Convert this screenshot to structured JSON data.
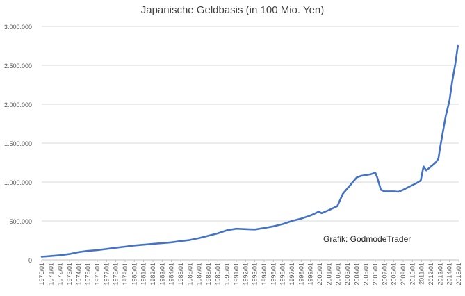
{
  "chart_data": {
    "type": "line",
    "title": "Japanische Geldbasis (in 100 Mio. Yen)",
    "annotation": "Grafik: GodmodeTrader",
    "xlabel": "",
    "ylabel": "",
    "ylim": [
      0,
      3000000
    ],
    "yticks": [
      0,
      500000,
      1000000,
      1500000,
      2000000,
      2500000,
      3000000
    ],
    "ytick_labels": [
      "0",
      "500.000",
      "1.000.000",
      "1.500.000",
      "2.000.000",
      "2.500.000",
      "3.000.000"
    ],
    "xlim": [
      1970,
      2015
    ],
    "xtick_labels": [
      "1970/01",
      "1971/01",
      "1972/01",
      "1973/01",
      "1974/01",
      "1975/01",
      "1976/01",
      "1977/01",
      "1978/01",
      "1979/01",
      "1980/01",
      "1981/01",
      "1982/01",
      "1983/01",
      "1984/01",
      "1985/01",
      "1986/01",
      "1987/01",
      "1988/01",
      "1989/01",
      "1990/01",
      "1991/01",
      "1992/01",
      "1993/01",
      "1994/01",
      "1995/01",
      "1996/01",
      "1997/01",
      "1998/01",
      "1999/01",
      "2000/01",
      "2001/01",
      "2002/01",
      "2003/01",
      "2004/01",
      "2005/01",
      "2006/01",
      "2007/01",
      "2008/01",
      "2009/01",
      "2010/01",
      "2011/01",
      "2012/01",
      "2013/01",
      "2014/01",
      "2015/01"
    ],
    "grid": true,
    "line_color": "#4472c4",
    "series": [
      {
        "x": [
          1970,
          1971,
          1972,
          1973,
          1974,
          1975,
          1976,
          1977,
          1978,
          1979,
          1980,
          1981,
          1982,
          1983,
          1984,
          1985,
          1986,
          1987,
          1988,
          1989,
          1990,
          1991,
          1992,
          1993,
          1994,
          1995,
          1996,
          1997,
          1998,
          1999,
          1999.9,
          2000.2,
          2001,
          2001.9,
          2002.5,
          2003,
          2003.5,
          2004,
          2004.5,
          2005,
          2005.5,
          2006,
          2006.2,
          2006.6,
          2007,
          2007.5,
          2008,
          2008.5,
          2009,
          2009.5,
          2010,
          2010.5,
          2010.9,
          2011.2,
          2011.5,
          2012,
          2012.5,
          2012.8,
          2013,
          2013.3,
          2013.6,
          2014,
          2014.3,
          2014.6,
          2014.9
        ],
        "y": [
          40000,
          50000,
          60000,
          75000,
          100000,
          115000,
          125000,
          140000,
          155000,
          170000,
          185000,
          195000,
          205000,
          215000,
          225000,
          240000,
          255000,
          280000,
          310000,
          340000,
          380000,
          400000,
          395000,
          390000,
          410000,
          430000,
          460000,
          500000,
          530000,
          570000,
          620000,
          600000,
          640000,
          690000,
          850000,
          920000,
          990000,
          1060000,
          1080000,
          1090000,
          1100000,
          1120000,
          1060000,
          900000,
          880000,
          880000,
          880000,
          875000,
          900000,
          930000,
          960000,
          990000,
          1020000,
          1200000,
          1150000,
          1200000,
          1250000,
          1300000,
          1450000,
          1650000,
          1850000,
          2050000,
          2300000,
          2500000,
          2750000
        ]
      }
    ]
  }
}
